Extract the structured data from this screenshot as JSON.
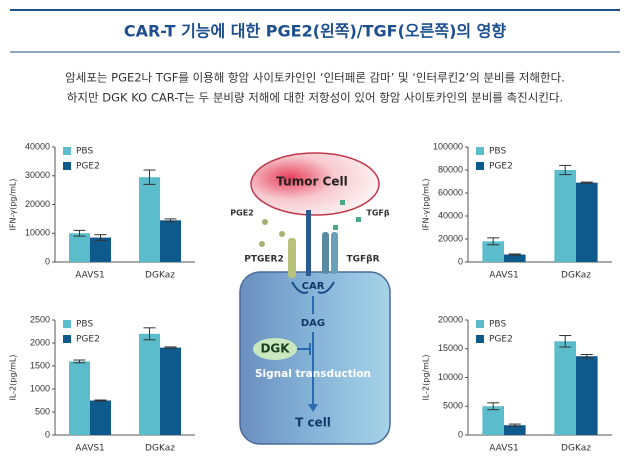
{
  "header": {
    "title": "CAR-T 기능에 대한 PGE2(왼쪽)/TGF(오른쪽)의 영향",
    "lines": [
      "암세포는 PGE2나 TGF를 이용해 항암 사이토카인인 ‘인터페론 감마’ 및 ‘인터루킨2’의 분비를 저해한다.",
      "하지만 DGK KO CAR-T는 두 분비량 저해에 대한 저항성이 있어 항암 사이토카인의 분비를 촉진시킨다."
    ]
  },
  "chart_data": [
    {
      "type": "bar",
      "y_label": "IFN-γ(pg/mL)",
      "categories": [
        "AAVS1",
        "DGKaz"
      ],
      "ylim": [
        0,
        40000
      ],
      "yticks": [
        0,
        10000,
        20000,
        30000,
        40000
      ],
      "legend": "top-left",
      "series": [
        {
          "name": "PBS",
          "color": "#5bbccc",
          "values": [
            10000,
            29500
          ],
          "errors": [
            1000,
            2500
          ]
        },
        {
          "name": "PGE2",
          "color": "#0f5a8c",
          "values": [
            8500,
            14500
          ],
          "errors": [
            1000,
            500
          ]
        }
      ]
    },
    {
      "type": "bar",
      "y_label": "IFN-γ(pg/mL)",
      "categories": [
        "AAVS1",
        "DGKaz"
      ],
      "ylim": [
        0,
        100000
      ],
      "yticks": [
        0,
        20000,
        40000,
        60000,
        80000,
        100000
      ],
      "legend": "top-left",
      "series": [
        {
          "name": "PBS",
          "color": "#5bbccc",
          "values": [
            18000,
            80000
          ],
          "errors": [
            3000,
            4000
          ]
        },
        {
          "name": "PGE2",
          "color": "#0f5a8c",
          "values": [
            6500,
            69000
          ],
          "errors": [
            500,
            500
          ]
        }
      ]
    },
    {
      "type": "bar",
      "y_label": "IL-2(pg/mL)",
      "categories": [
        "AAVS1",
        "DGKaz"
      ],
      "ylim": [
        0,
        2500
      ],
      "yticks": [
        0,
        500,
        1000,
        1500,
        2000,
        2500
      ],
      "legend": "top-left",
      "series": [
        {
          "name": "PBS",
          "color": "#5bbccc",
          "values": [
            1600,
            2200
          ],
          "errors": [
            30,
            130
          ]
        },
        {
          "name": "PGE2",
          "color": "#0f5a8c",
          "values": [
            750,
            1900
          ],
          "errors": [
            10,
            15
          ]
        }
      ]
    },
    {
      "type": "bar",
      "y_label": "IL-2(pg/mL)",
      "categories": [
        "AAVS1",
        "DGKaz"
      ],
      "ylim": [
        0,
        20000
      ],
      "yticks": [
        0,
        5000,
        10000,
        15000,
        20000
      ],
      "legend": "top-left",
      "series": [
        {
          "name": "PBS",
          "color": "#5bbccc",
          "values": [
            5000,
            16300
          ],
          "errors": [
            600,
            1000
          ]
        },
        {
          "name": "PGE2",
          "color": "#0f5a8c",
          "values": [
            1700,
            13700
          ],
          "errors": [
            200,
            300
          ]
        }
      ]
    }
  ],
  "diagram": {
    "tumor": "Tumor Cell",
    "pge2": "PGE2",
    "tgfb": "TGFβ",
    "ptger2": "PTGER2",
    "tgfbr": "TGFβR",
    "car": "CAR",
    "dag": "DAG",
    "dgk": "DGK",
    "signal": "Signal transduction",
    "tcell": "T cell"
  }
}
